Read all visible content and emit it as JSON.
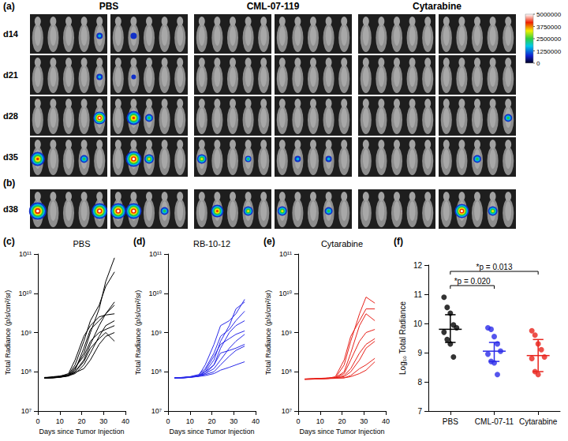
{
  "image_panels": {
    "panel_a": "(a)",
    "panel_b": "(b)",
    "columns": [
      "PBS",
      "CML-07-119",
      "Cytarabine"
    ],
    "rows_a": [
      "d14",
      "d21",
      "d28",
      "d35"
    ],
    "rows_b": [
      "d38"
    ],
    "colorbar": {
      "range": [
        0,
        5000000
      ],
      "ticks": [
        0,
        1250000,
        2500000,
        3750000,
        5000000
      ]
    }
  },
  "chart_data": [
    {
      "type": "line",
      "panel": "(c)",
      "title": "PBS",
      "x_label": "Days since Tumor Injection",
      "y_label": "Total Radiance (p/s/cm²/sr)",
      "x": [
        3,
        7,
        10,
        14,
        17,
        21,
        24,
        28,
        31,
        35
      ],
      "xlim": [
        0,
        40
      ],
      "xticks": [
        0,
        10,
        20,
        30,
        40
      ],
      "ylim": [
        10000000.0,
        100000000000.0
      ],
      "yticks": [
        {
          "value": 10000000.0,
          "label": "10⁷"
        },
        {
          "value": 100000000.0,
          "label": "10⁸"
        },
        {
          "value": 1000000000.0,
          "label": "10⁹"
        },
        {
          "value": 10000000000.0,
          "label": "10¹⁰"
        },
        {
          "value": 100000000000.0,
          "label": "10¹¹"
        }
      ],
      "log": "y",
      "grid": false,
      "series": [
        {
          "color": "#000000",
          "values": [
            70000000.0,
            72000000.0,
            75000000.0,
            80000000.0,
            120000000.0,
            300000000.0,
            1000000000.0,
            4000000000.0,
            20000000000.0,
            80000000000.0
          ]
        },
        {
          "color": "#000000",
          "values": [
            70000000.0,
            75000000.0,
            78000000.0,
            85000000.0,
            150000000.0,
            600000000.0,
            2000000000.0,
            5000000000.0,
            15000000000.0,
            35000000000.0
          ]
        },
        {
          "color": "#000000",
          "values": [
            68000000.0,
            70000000.0,
            72000000.0,
            78000000.0,
            100000000.0,
            200000000.0,
            500000000.0,
            1500000000.0,
            3000000000.0,
            6000000000.0
          ]
        },
        {
          "color": "#000000",
          "values": [
            70000000.0,
            71000000.0,
            74000000.0,
            80000000.0,
            110000000.0,
            400000000.0,
            1200000000.0,
            2000000000.0,
            3000000000.0,
            5000000000.0
          ]
        },
        {
          "color": "#000000",
          "values": [
            72000000.0,
            73000000.0,
            76000000.0,
            90000000.0,
            200000000.0,
            800000000.0,
            1500000000.0,
            2500000000.0,
            2800000000.0,
            3000000000.0
          ]
        },
        {
          "color": "#000000",
          "values": [
            69000000.0,
            70000000.0,
            73000000.0,
            79000000.0,
            90000000.0,
            150000000.0,
            300000000.0,
            800000000.0,
            1500000000.0,
            2000000000.0
          ]
        },
        {
          "color": "#000000",
          "values": [
            71000000.0,
            72000000.0,
            75000000.0,
            82000000.0,
            130000000.0,
            250000000.0,
            600000000.0,
            1000000000.0,
            1200000000.0,
            1500000000.0
          ]
        },
        {
          "color": "#000000",
          "values": [
            70000000.0,
            71000000.0,
            73000000.0,
            80000000.0,
            95000000.0,
            120000000.0,
            200000000.0,
            500000000.0,
            800000000.0,
            1000000000.0
          ]
        },
        {
          "color": "#000000",
          "values": [
            70000000.0,
            72000000.0,
            75000000.0,
            80000000.0,
            100000000.0,
            180000000.0,
            400000000.0,
            700000000.0,
            1000000000.0,
            600000000.0
          ]
        }
      ]
    },
    {
      "type": "line",
      "panel": "(d)",
      "title": "RB-10-12",
      "x_label": "Days since Tumor Injection",
      "y_label": "Total Radiance (p/s/cm²/sr)",
      "x": [
        3,
        7,
        10,
        14,
        17,
        21,
        24,
        28,
        31,
        35
      ],
      "xlim": [
        0,
        40
      ],
      "xticks": [
        0,
        10,
        20,
        30,
        40
      ],
      "ylim": [
        10000000.0,
        100000000000.0
      ],
      "yticks": [
        {
          "value": 10000000.0,
          "label": "10⁷"
        },
        {
          "value": 100000000.0,
          "label": "10⁸"
        },
        {
          "value": 1000000000.0,
          "label": "10⁹"
        },
        {
          "value": 10000000000.0,
          "label": "10¹⁰"
        },
        {
          "value": 100000000000.0,
          "label": "10¹¹"
        }
      ],
      "log": "y",
      "grid": false,
      "series": [
        {
          "color": "#2a2ae8",
          "values": [
            70000000.0,
            72000000.0,
            74000000.0,
            80000000.0,
            150000000.0,
            500000000.0,
            1500000000.0,
            2000000000.0,
            3000000000.0,
            7000000000.0
          ]
        },
        {
          "color": "#2a2ae8",
          "values": [
            69000000.0,
            70000000.0,
            73000000.0,
            78000000.0,
            100000000.0,
            200000000.0,
            600000000.0,
            1500000000.0,
            4000000000.0,
            6000000000.0
          ]
        },
        {
          "color": "#2a2ae8",
          "values": [
            70000000.0,
            71000000.0,
            75000000.0,
            85000000.0,
            120000000.0,
            300000000.0,
            800000000.0,
            1200000000.0,
            2000000000.0,
            3500000000.0
          ]
        },
        {
          "color": "#2a2ae8",
          "values": [
            71000000.0,
            72000000.0,
            74000000.0,
            80000000.0,
            90000000.0,
            150000000.0,
            400000000.0,
            1000000000.0,
            1500000000.0,
            2000000000.0
          ]
        },
        {
          "color": "#2a2ae8",
          "values": [
            70000000.0,
            71000000.0,
            73000000.0,
            79000000.0,
            110000000.0,
            250000000.0,
            500000000.0,
            700000000.0,
            900000000.0,
            1100000000.0
          ]
        },
        {
          "color": "#2a2ae8",
          "values": [
            68000000.0,
            70000000.0,
            72000000.0,
            77000000.0,
            90000000.0,
            120000000.0,
            200000000.0,
            400000000.0,
            600000000.0,
            900000000.0
          ]
        },
        {
          "color": "#2a2ae8",
          "values": [
            70000000.0,
            72000000.0,
            74000000.0,
            80000000.0,
            100000000.0,
            150000000.0,
            300000000.0,
            350000000.0,
            400000000.0,
            500000000.0
          ]
        },
        {
          "color": "#2a2ae8",
          "values": [
            70000000.0,
            71000000.0,
            73000000.0,
            78000000.0,
            85000000.0,
            100000000.0,
            150000000.0,
            250000000.0,
            350000000.0,
            450000000.0
          ]
        },
        {
          "color": "#2a2ae8",
          "values": [
            69000000.0,
            70000000.0,
            72000000.0,
            76000000.0,
            80000000.0,
            90000000.0,
            110000000.0,
            130000000.0,
            150000000.0,
            180000000.0
          ]
        }
      ]
    },
    {
      "type": "line",
      "panel": "(e)",
      "title": "Cytarabine",
      "x_label": "Days since Tumor Injection",
      "y_label": "Total Radiance (p/s/cm²/sr)",
      "x": [
        3,
        7,
        10,
        14,
        17,
        21,
        24,
        28,
        31,
        35
      ],
      "xlim": [
        0,
        40
      ],
      "xticks": [
        0,
        10,
        20,
        30,
        40
      ],
      "ylim": [
        10000000.0,
        100000000000.0
      ],
      "yticks": [
        {
          "value": 10000000.0,
          "label": "10⁷"
        },
        {
          "value": 100000000.0,
          "label": "10⁸"
        },
        {
          "value": 1000000000.0,
          "label": "10⁹"
        },
        {
          "value": 10000000000.0,
          "label": "10¹⁰"
        },
        {
          "value": 100000000000.0,
          "label": "10¹¹"
        }
      ],
      "log": "y",
      "grid": false,
      "series": [
        {
          "color": "#e8231c",
          "values": [
            65000000.0,
            66000000.0,
            67000000.0,
            68000000.0,
            70000000.0,
            150000000.0,
            600000000.0,
            3000000000.0,
            8000000000.0,
            5600000000.0
          ]
        },
        {
          "color": "#e8231c",
          "values": [
            65000000.0,
            66000000.0,
            67000000.0,
            69000000.0,
            75000000.0,
            200000000.0,
            800000000.0,
            2000000000.0,
            4000000000.0,
            4000000000.0
          ]
        },
        {
          "color": "#e8231c",
          "values": [
            64000000.0,
            65000000.0,
            66000000.0,
            68000000.0,
            70000000.0,
            100000000.0,
            300000000.0,
            1500000000.0,
            3000000000.0,
            2000000000.0
          ]
        },
        {
          "color": "#e8231c",
          "values": [
            65000000.0,
            66000000.0,
            68000000.0,
            70000000.0,
            72000000.0,
            90000000.0,
            200000000.0,
            600000000.0,
            1000000000.0,
            1200000000.0
          ]
        },
        {
          "color": "#e8231c",
          "values": [
            65000000.0,
            66000000.0,
            67000000.0,
            68000000.0,
            70000000.0,
            80000000.0,
            120000000.0,
            300000000.0,
            500000000.0,
            700000000.0
          ]
        },
        {
          "color": "#e8231c",
          "values": [
            66000000.0,
            66000000.0,
            67000000.0,
            69000000.0,
            70000000.0,
            75000000.0,
            100000000.0,
            200000000.0,
            400000000.0,
            600000000.0
          ]
        },
        {
          "color": "#e8231c",
          "values": [
            65000000.0,
            66000000.0,
            67000000.0,
            68000000.0,
            69000000.0,
            70000000.0,
            80000000.0,
            120000000.0,
            150000000.0,
            220000000.0
          ]
        },
        {
          "color": "#e8231c",
          "values": [
            64000000.0,
            65000000.0,
            66000000.0,
            67000000.0,
            68000000.0,
            70000000.0,
            75000000.0,
            90000000.0,
            110000000.0,
            180000000.0
          ]
        }
      ]
    },
    {
      "type": "scatter",
      "panel": "(f)",
      "y_label": "Log₁₀ Total Radiance",
      "categories": [
        "PBS",
        "CML-07-11",
        "Cytarabine"
      ],
      "colors": [
        "#000000",
        "#2a2ae8",
        "#e8231c"
      ],
      "points": [
        [
          10.9,
          10.55,
          10.35,
          9.95,
          9.85,
          9.7,
          9.45,
          9.3,
          8.85
        ],
        [
          9.85,
          9.8,
          9.55,
          9.3,
          9.05,
          8.95,
          8.7,
          8.65,
          8.25
        ],
        [
          9.75,
          9.6,
          9.3,
          9.1,
          8.85,
          8.8,
          8.35,
          8.25
        ]
      ],
      "means": [
        9.8,
        9.05,
        8.9
      ],
      "error_low": [
        9.35,
        8.7,
        8.35
      ],
      "error_high": [
        10.3,
        9.35,
        9.45
      ],
      "annotations": [
        {
          "text": "*p = 0.020",
          "from": "PBS",
          "to": "CML-07-11"
        },
        {
          "text": "*p = 0.013",
          "from": "PBS",
          "to": "Cytarabine"
        }
      ],
      "ylim": [
        7,
        12
      ],
      "yticks": [
        7,
        8,
        9,
        10,
        11,
        12
      ],
      "grid": false
    }
  ]
}
